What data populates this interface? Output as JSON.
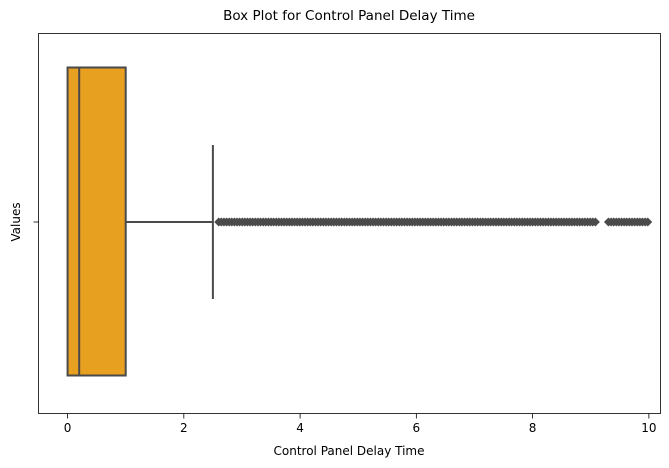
{
  "chart_data": {
    "type": "box",
    "orientation": "horizontal",
    "title": "Box Plot for Control Panel Delay Time",
    "xlabel": "Control Panel Delay Time",
    "ylabel": "Values",
    "xlim": [
      -0.5,
      10.2
    ],
    "xticks": [
      0,
      2,
      4,
      6,
      8,
      10
    ],
    "xtick_labels": [
      "0",
      "2",
      "4",
      "6",
      "8",
      "10"
    ],
    "colors": {
      "box_fill": "#e8a020",
      "line": "#4a4a4a",
      "outlier": "#4a4a4a"
    },
    "grid": false,
    "series": [
      {
        "min": 0,
        "q1": 0,
        "median": 0.2,
        "q3": 1.0,
        "whisker_low": 0,
        "whisker_high": 2.5,
        "outlier_range": [
          2.6,
          10.0
        ],
        "outlier_gaps": [
          [
            9.1,
            9.3
          ]
        ]
      }
    ]
  }
}
